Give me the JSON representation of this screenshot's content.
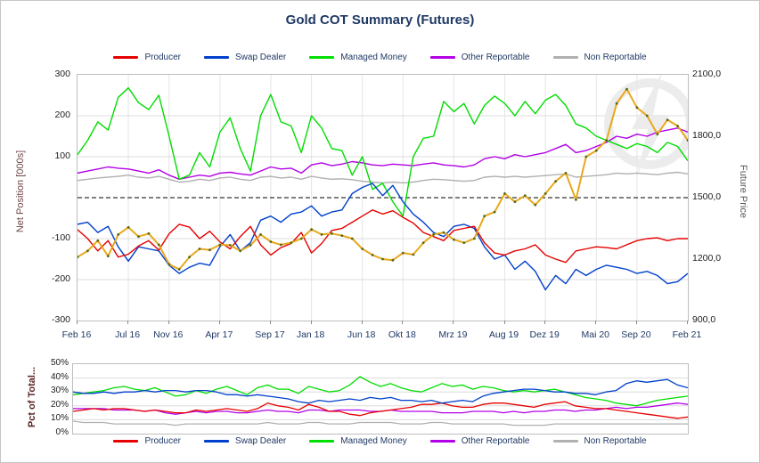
{
  "window": {
    "title": "Gold COT Summary (Futures)"
  },
  "legend": {
    "items": [
      {
        "label": "Producer",
        "color": "#e60000"
      },
      {
        "label": "Swap Dealer",
        "color": "#0040cc"
      },
      {
        "label": "Managed Money",
        "color": "#00dd00"
      },
      {
        "label": "Other Reportable",
        "color": "#b300e6"
      },
      {
        "label": "Non Reportable",
        "color": "#b0b0b0"
      }
    ]
  },
  "colors": {
    "title": "#1f3864",
    "grid": "#dcdcdc",
    "plot_border": "#bdbdbd",
    "zero_line": "#000000",
    "price_line": "#e8a81c",
    "price_marker": "#55691c",
    "watermark": "#e9e9e9"
  },
  "chart_data": [
    {
      "type": "line",
      "title": "Gold COT Summary (Futures)",
      "ylabel_left": "Net Position [000s]",
      "ylabel_right": "Future Price",
      "ylim_left": [
        -300,
        300
      ],
      "ylim_right": [
        900,
        2100
      ],
      "yticks_left": [
        {
          "label": "300",
          "value": 300
        },
        {
          "label": "200",
          "value": 200
        },
        {
          "label": "100",
          "value": 100
        },
        {
          "label": "-100",
          "value": -100
        },
        {
          "label": "-200",
          "value": -200
        },
        {
          "label": "-300",
          "value": -300
        }
      ],
      "yticks_right": [
        {
          "label": "2100,0",
          "value": 2100
        },
        {
          "label": "1800,0",
          "value": 1800
        },
        {
          "label": "1500,0",
          "value": 1500
        },
        {
          "label": "1200,0",
          "value": 1200
        },
        {
          "label": "900,0",
          "value": 900
        }
      ],
      "zero_line": "dashed",
      "grid": true,
      "legend_position": "top-center",
      "x_ticks": [
        {
          "label": "Feb 16",
          "month": 0
        },
        {
          "label": "Jul 16",
          "month": 5
        },
        {
          "label": "Nov 16",
          "month": 9
        },
        {
          "label": "Apr 17",
          "month": 14
        },
        {
          "label": "Sep 17",
          "month": 19
        },
        {
          "label": "Jan 18",
          "month": 23
        },
        {
          "label": "Jun 18",
          "month": 28
        },
        {
          "label": "Okt 18",
          "month": 32
        },
        {
          "label": "Mrz 19",
          "month": 37
        },
        {
          "label": "Aug 19",
          "month": 42
        },
        {
          "label": "Dez 19",
          "month": 46
        },
        {
          "label": "Mai 20",
          "month": 51
        },
        {
          "label": "Sep 20",
          "month": 55
        },
        {
          "label": "Feb 21",
          "month": 60
        }
      ],
      "n_points": 61,
      "series": [
        {
          "name": "Non Reportable",
          "axis": "left",
          "color": "#b0b0b0",
          "values": [
            42,
            45,
            48,
            50,
            52,
            55,
            50,
            48,
            52,
            45,
            38,
            40,
            45,
            42,
            48,
            50,
            45,
            42,
            50,
            52,
            48,
            50,
            45,
            52,
            48,
            45,
            46,
            44,
            40,
            38,
            36,
            38,
            36,
            38,
            42,
            45,
            44,
            42,
            40,
            42,
            50,
            52,
            50,
            52,
            50,
            52,
            54,
            56,
            58,
            50,
            52,
            54,
            56,
            60,
            58,
            60,
            58,
            56,
            60,
            62,
            58
          ]
        },
        {
          "name": "Other Reportable",
          "axis": "left",
          "color": "#b300e6",
          "values": [
            60,
            65,
            70,
            75,
            72,
            70,
            65,
            60,
            68,
            55,
            45,
            50,
            55,
            52,
            60,
            62,
            58,
            55,
            65,
            75,
            70,
            72,
            60,
            80,
            85,
            78,
            82,
            88,
            85,
            80,
            78,
            82,
            80,
            78,
            82,
            85,
            80,
            78,
            75,
            80,
            95,
            100,
            95,
            105,
            100,
            105,
            110,
            120,
            130,
            110,
            115,
            125,
            135,
            150,
            145,
            155,
            150,
            160,
            165,
            170,
            160
          ]
        },
        {
          "name": "Managed Money",
          "axis": "left",
          "color": "#00dd00",
          "values": [
            105,
            140,
            185,
            165,
            245,
            268,
            232,
            215,
            250,
            150,
            45,
            55,
            110,
            75,
            160,
            195,
            120,
            65,
            200,
            252,
            185,
            175,
            110,
            200,
            170,
            120,
            115,
            55,
            100,
            20,
            35,
            -10,
            -45,
            100,
            145,
            150,
            235,
            210,
            230,
            180,
            225,
            248,
            230,
            200,
            235,
            205,
            238,
            252,
            225,
            180,
            170,
            150,
            140,
            130,
            120,
            132,
            125,
            110,
            135,
            125,
            90
          ]
        },
        {
          "name": "Swap Dealer",
          "axis": "left",
          "color": "#0040cc",
          "values": [
            -65,
            -60,
            -85,
            -70,
            -120,
            -155,
            -120,
            -125,
            -130,
            -165,
            -185,
            -170,
            -160,
            -165,
            -120,
            -90,
            -130,
            -110,
            -55,
            -45,
            -60,
            -40,
            -35,
            -20,
            -45,
            -35,
            -30,
            10,
            25,
            35,
            5,
            30,
            -10,
            -40,
            -60,
            -85,
            -95,
            -70,
            -65,
            -75,
            -120,
            -150,
            -140,
            -175,
            -155,
            -180,
            -225,
            -190,
            -210,
            -175,
            -190,
            -175,
            -165,
            -170,
            -175,
            -185,
            -180,
            -190,
            -210,
            -205,
            -185
          ]
        },
        {
          "name": "Producer",
          "axis": "left",
          "color": "#e60000",
          "values": [
            -78,
            -100,
            -130,
            -105,
            -145,
            -138,
            -118,
            -105,
            -128,
            -88,
            -65,
            -72,
            -100,
            -82,
            -108,
            -125,
            -95,
            -70,
            -115,
            -140,
            -122,
            -112,
            -85,
            -135,
            -112,
            -80,
            -75,
            -60,
            -45,
            -30,
            -40,
            -32,
            -48,
            -62,
            -85,
            -95,
            -105,
            -80,
            -75,
            -70,
            -110,
            -135,
            -140,
            -130,
            -125,
            -115,
            -140,
            -150,
            -158,
            -130,
            -125,
            -120,
            -122,
            -125,
            -115,
            -105,
            -100,
            -98,
            -105,
            -100,
            -100
          ]
        },
        {
          "name": "Future Price",
          "axis": "right",
          "color": "#e8a81c",
          "marker": "#55691c",
          "width": 2,
          "values": [
            1210,
            1240,
            1290,
            1215,
            1320,
            1355,
            1310,
            1325,
            1270,
            1175,
            1150,
            1210,
            1250,
            1245,
            1270,
            1268,
            1240,
            1268,
            1320,
            1285,
            1270,
            1280,
            1300,
            1345,
            1320,
            1325,
            1315,
            1300,
            1250,
            1220,
            1200,
            1195,
            1230,
            1222,
            1280,
            1320,
            1330,
            1295,
            1280,
            1300,
            1410,
            1430,
            1520,
            1480,
            1510,
            1465,
            1520,
            1580,
            1620,
            1490,
            1700,
            1730,
            1780,
            1960,
            2030,
            1940,
            1900,
            1810,
            1880,
            1850,
            1780
          ]
        }
      ]
    },
    {
      "type": "line",
      "ylabel": "Pct of Total...",
      "ylim": [
        0,
        50
      ],
      "yticks": [
        {
          "label": "50%",
          "value": 50
        },
        {
          "label": "40%",
          "value": 40
        },
        {
          "label": "30%",
          "value": 30
        },
        {
          "label": "20%",
          "value": 20
        },
        {
          "label": "10%",
          "value": 10
        },
        {
          "label": "0%",
          "value": 0
        }
      ],
      "grid": true,
      "legend_position": "bottom-center",
      "n_points": 61,
      "series": [
        {
          "name": "Non Reportable",
          "color": "#b0b0b0",
          "values": [
            9,
            8,
            8,
            8,
            7,
            7,
            7,
            7,
            7,
            7,
            6,
            7,
            7,
            7,
            7,
            7,
            7,
            7,
            7,
            8,
            7,
            7,
            7,
            8,
            8,
            7,
            7,
            7,
            8,
            8,
            8,
            8,
            7,
            7,
            7,
            8,
            8,
            7,
            7,
            7,
            7,
            7,
            7,
            6,
            6,
            6,
            6,
            7,
            7,
            7,
            7,
            7,
            7,
            7,
            7,
            7,
            7,
            7,
            7,
            7,
            7
          ]
        },
        {
          "name": "Other Reportable",
          "color": "#b300e6",
          "values": [
            18,
            18,
            18,
            18,
            17,
            17,
            17,
            16,
            17,
            15,
            14,
            15,
            16,
            15,
            16,
            16,
            15,
            15,
            16,
            17,
            16,
            16,
            15,
            17,
            17,
            16,
            17,
            17,
            17,
            16,
            16,
            17,
            16,
            16,
            16,
            16,
            15,
            15,
            15,
            16,
            16,
            16,
            15,
            16,
            15,
            16,
            16,
            17,
            17,
            16,
            17,
            17,
            18,
            19,
            18,
            19,
            19,
            20,
            21,
            22,
            21
          ]
        },
        {
          "name": "Producer",
          "color": "#e60000",
          "values": [
            16,
            17,
            18,
            17,
            18,
            18,
            17,
            16,
            17,
            16,
            15,
            15,
            17,
            16,
            17,
            18,
            17,
            16,
            18,
            22,
            20,
            19,
            17,
            21,
            19,
            16,
            16,
            14,
            13,
            15,
            16,
            17,
            18,
            19,
            21,
            21,
            22,
            20,
            19,
            19,
            21,
            22,
            22,
            21,
            20,
            19,
            21,
            22,
            23,
            20,
            19,
            18,
            18,
            17,
            16,
            15,
            14,
            13,
            12,
            11,
            12
          ]
        },
        {
          "name": "Managed Money",
          "color": "#00dd00",
          "values": [
            28,
            29,
            30,
            31,
            33,
            34,
            32,
            31,
            33,
            30,
            27,
            28,
            31,
            29,
            32,
            34,
            31,
            28,
            33,
            35,
            32,
            32,
            29,
            34,
            32,
            30,
            31,
            35,
            41,
            37,
            34,
            36,
            33,
            31,
            30,
            33,
            36,
            34,
            35,
            32,
            34,
            33,
            31,
            30,
            31,
            30,
            31,
            32,
            30,
            28,
            26,
            25,
            24,
            22,
            21,
            20,
            22,
            24,
            25,
            26,
            27
          ]
        },
        {
          "name": "Swap Dealer",
          "color": "#0040cc",
          "values": [
            30,
            29,
            29,
            30,
            29,
            30,
            30,
            31,
            30,
            31,
            31,
            30,
            31,
            31,
            30,
            28,
            28,
            27,
            28,
            27,
            26,
            25,
            23,
            22,
            24,
            23,
            24,
            25,
            24,
            26,
            25,
            26,
            24,
            24,
            23,
            24,
            22,
            23,
            24,
            23,
            27,
            29,
            30,
            31,
            32,
            32,
            31,
            30,
            30,
            29,
            29,
            28,
            30,
            31,
            36,
            38,
            37,
            38,
            39,
            35,
            33
          ]
        }
      ]
    }
  ]
}
